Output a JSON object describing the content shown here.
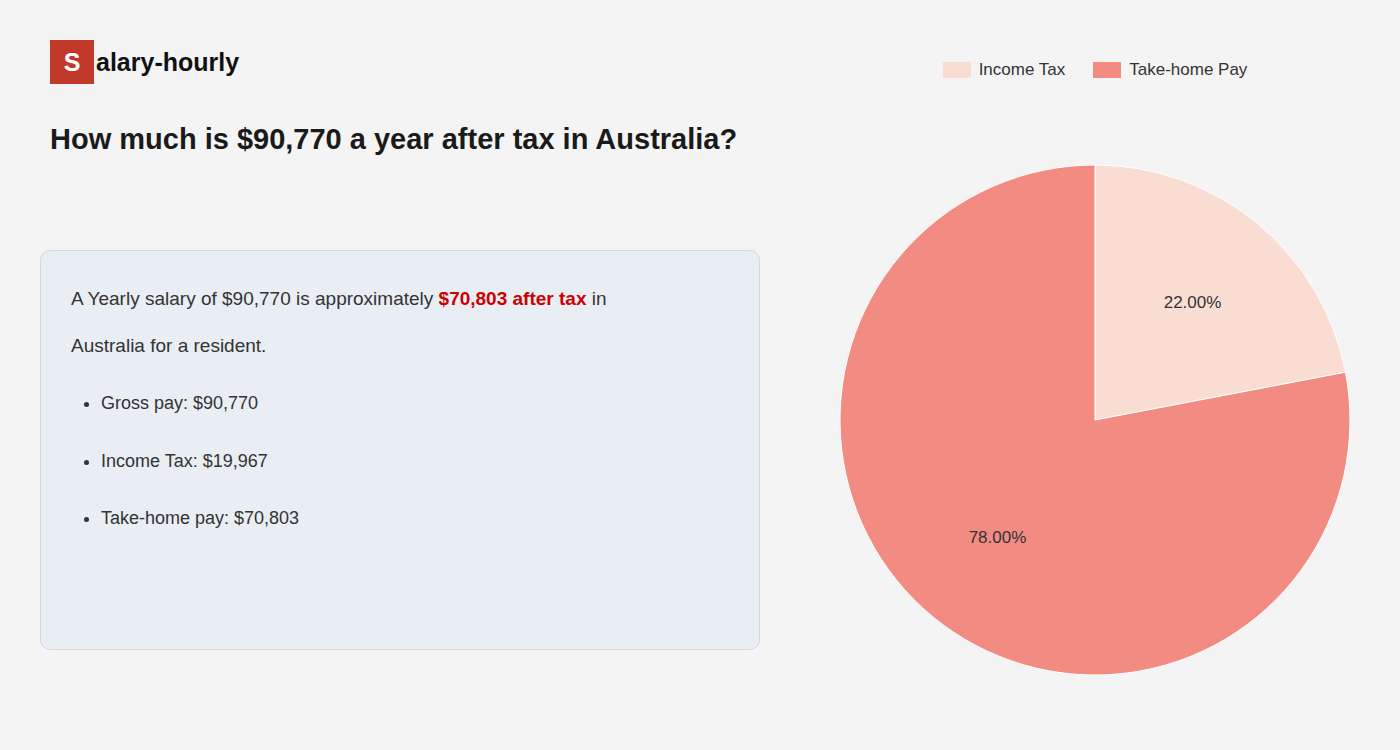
{
  "chart_data": {
    "type": "pie",
    "title": "How much is $90,770 a year after tax in Australia?",
    "annotations": [
      {
        "text": "S",
        "color": "#c0392b"
      },
      {
        "text": "alary-hourly"
      },
      {
        "text": "A Yearly salary of $90,770 is approximately "
      },
      {
        "text": "$70,803 after tax",
        "color": "#cc0000"
      },
      {
        "text": " in"
      },
      {
        "text": "Australia for a resident."
      },
      {
        "text": "Gross pay: $90,770"
      },
      {
        "text": "Income Tax: $19,967"
      },
      {
        "text": "Take-home pay: $70,803"
      }
    ],
    "categories": [
      "Income Tax",
      "Take-home Pay"
    ],
    "values": [
      22.0,
      78.0
    ],
    "value_labels": [
      "22.00%",
      "78.00%"
    ],
    "colors": [
      "#f9ddd3",
      "#f28b82"
    ],
    "data_labels": true,
    "legend": "top"
  }
}
